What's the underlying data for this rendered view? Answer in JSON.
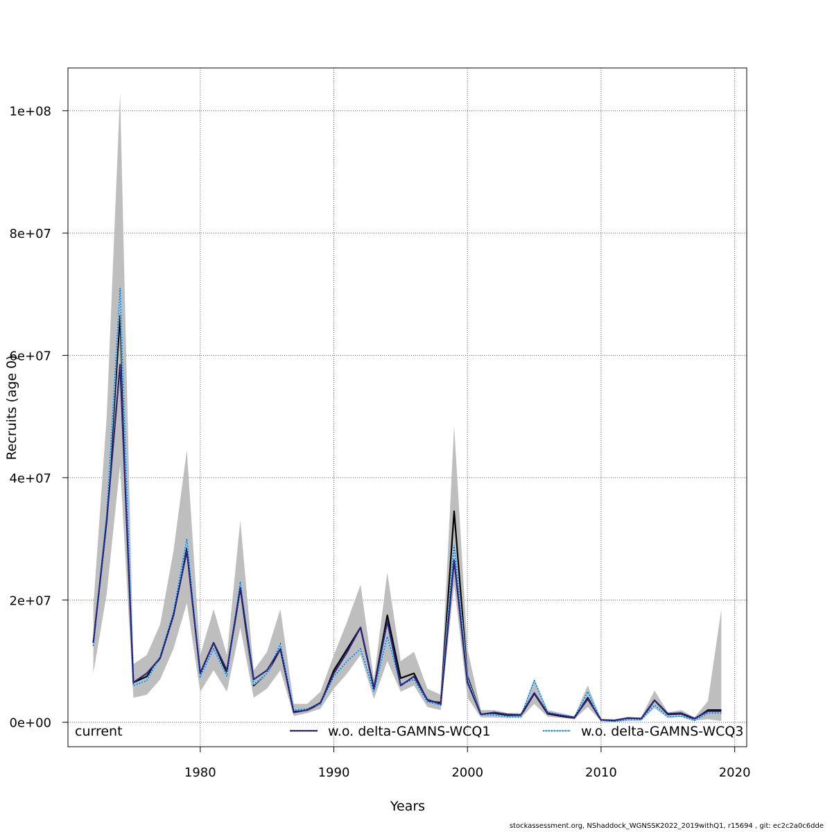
{
  "chart_data": {
    "type": "line",
    "xlabel": "Years",
    "ylabel": "Recruits (age 0)",
    "xlim": [
      1970.1,
      2020.9
    ],
    "ylim": [
      -4000000,
      107000000
    ],
    "x_ticks": [
      1980,
      1990,
      2000,
      2010,
      2020
    ],
    "x_tick_labels": [
      "1980",
      "1990",
      "2000",
      "2010",
      "2020"
    ],
    "y_ticks": [
      0,
      20000000,
      40000000,
      60000000,
      80000000,
      100000000
    ],
    "y_tick_labels": [
      "0e+00",
      "2e+07",
      "4e+07",
      "6e+07",
      "8e+07",
      "1e+08"
    ],
    "grid": true,
    "legend": {
      "placement": "bottom",
      "entries": [
        "current",
        "w.o. delta-GAMNS-WCQ1",
        "w.o. delta-GAMNS-WCQ3"
      ]
    },
    "colors": {
      "current": "#000000",
      "q1": "#1f1a6e",
      "q1_dots": "#4a3d9c",
      "q3": "#87cefa",
      "q3_dots": "#1a4a80",
      "band": "#bebebe"
    },
    "x": [
      1972,
      1973,
      1974,
      1975,
      1976,
      1977,
      1978,
      1979,
      1980,
      1981,
      1982,
      1983,
      1984,
      1985,
      1986,
      1987,
      1988,
      1989,
      1990,
      1991,
      1992,
      1993,
      1994,
      1995,
      1996,
      1997,
      1998,
      1999,
      2000,
      2001,
      2002,
      2003,
      2004,
      2005,
      2006,
      2007,
      2008,
      2009,
      2010,
      2011,
      2012,
      2013,
      2014,
      2015,
      2016,
      2017,
      2018,
      2019
    ],
    "band_upper": [
      19000000,
      50000000,
      103000000,
      9500000,
      11000000,
      16000000,
      28000000,
      44500000,
      11000000,
      18500000,
      11000000,
      33000000,
      8500000,
      11500000,
      18500000,
      3000000,
      3000000,
      5000000,
      11000000,
      16500000,
      22500000,
      7000000,
      24500000,
      10000000,
      11500000,
      5500000,
      4500000,
      48500000,
      12000000,
      2000000,
      2000000,
      1500000,
      1500000,
      6500000,
      2000000,
      1500000,
      1000000,
      6000000,
      500000,
      500000,
      800000,
      800000,
      5200000,
      1600000,
      2000000,
      800000,
      3500000,
      18500000
    ],
    "band_lower": [
      8000000,
      21000000,
      42000000,
      4000000,
      4500000,
      7000000,
      12000000,
      19500000,
      5000000,
      8500000,
      5000000,
      15500000,
      4000000,
      5500000,
      8500000,
      1000000,
      1500000,
      2200000,
      5500000,
      8000000,
      11000000,
      3800000,
      10000000,
      5000000,
      6000000,
      2500000,
      2000000,
      22500000,
      4000000,
      800000,
      800000,
      700000,
      700000,
      3000000,
      900000,
      700000,
      500000,
      2500000,
      200000,
      100000,
      300000,
      300000,
      2300000,
      700000,
      900000,
      300000,
      500000,
      200000
    ],
    "series": [
      {
        "name": "current",
        "values": [
          13000000,
          33000000,
          66500000,
          6500000,
          7500000,
          10500000,
          17500000,
          28500000,
          8000000,
          13000000,
          8000000,
          22000000,
          6000000,
          8000000,
          12000000,
          1800000,
          2000000,
          3000000,
          8500000,
          12000000,
          15500000,
          5500000,
          17500000,
          7200000,
          8000000,
          3500000,
          3200000,
          34500000,
          7500000,
          1300000,
          1500000,
          1100000,
          1100000,
          4700000,
          1400000,
          1000000,
          700000,
          4000000,
          300000,
          200000,
          600000,
          500000,
          3600000,
          1300000,
          1400000,
          500000,
          2000000,
          2000000
        ]
      },
      {
        "name": "w.o. delta-GAMNS-WCQ1",
        "values": [
          13000000,
          33000000,
          58500000,
          6500000,
          8000000,
          10500000,
          17500000,
          28000000,
          8000000,
          13000000,
          8500000,
          22000000,
          7000000,
          8500000,
          12000000,
          1600000,
          2000000,
          3200000,
          8000000,
          11500000,
          15500000,
          5500000,
          16500000,
          6000000,
          7500000,
          3700000,
          3000000,
          26500000,
          6500000,
          1300000,
          1600000,
          1300000,
          1200000,
          4800000,
          1500000,
          1100000,
          800000,
          3800000,
          400000,
          300000,
          700000,
          600000,
          3600000,
          1400000,
          1500000,
          600000,
          1800000,
          1800000
        ]
      },
      {
        "name": "w.o. delta-GAMNS-WCQ3",
        "values": [
          12500000,
          34000000,
          71000000,
          6000000,
          6800000,
          10800000,
          18000000,
          30000000,
          7500000,
          12000000,
          7500000,
          23000000,
          6200000,
          8000000,
          12800000,
          2000000,
          2200000,
          3000000,
          7500000,
          10000000,
          12000000,
          5000000,
          14000000,
          6200000,
          7000000,
          3300000,
          2800000,
          29000000,
          7000000,
          1200000,
          1200000,
          900000,
          900000,
          6800000,
          1600000,
          1200000,
          800000,
          5000000,
          300000,
          150000,
          400000,
          400000,
          2800000,
          900000,
          1000000,
          300000,
          1500000,
          1500000
        ]
      }
    ]
  },
  "footer": "stockassessment.org, NShaddock_WGNSSK2022_2019withQ1, r15694 , git: ec2c2a0c6dde"
}
